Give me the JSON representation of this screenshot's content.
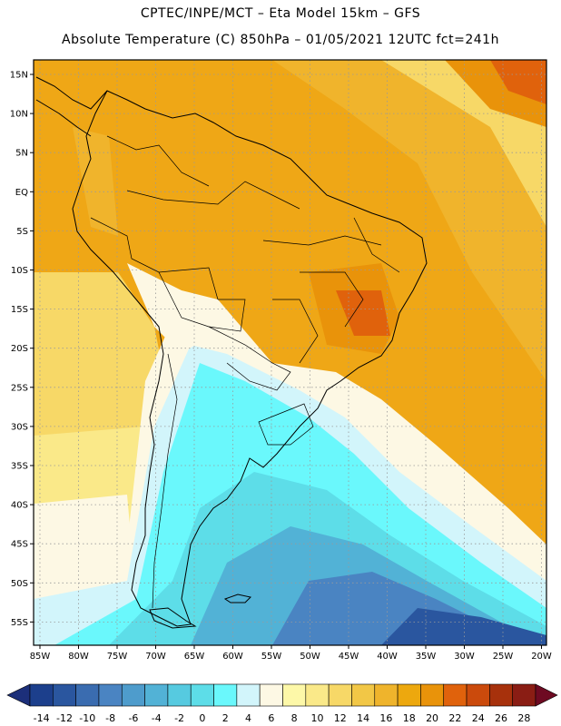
{
  "title_line1": "CPTEC/INPE/MCT –  Eta Model 15km – GFS",
  "title_line2": "Absolute Temperature (C) 850hPa – 01/05/2021 12UTC fct=241h",
  "lat_labels": [
    "15N",
    "10N",
    "5N",
    "EQ",
    "5S",
    "10S",
    "15S",
    "20S",
    "25S",
    "30S",
    "35S",
    "40S",
    "45S",
    "50S",
    "55S"
  ],
  "lon_labels": [
    "85W",
    "80W",
    "75W",
    "70W",
    "65W",
    "60W",
    "55W",
    "50W",
    "45W",
    "40W",
    "35W",
    "30W",
    "25W",
    "20W"
  ],
  "colorbar": {
    "labels": [
      "-14",
      "-12",
      "-10",
      "-8",
      "-6",
      "-4",
      "-2",
      "0",
      "2",
      "4",
      "6",
      "8",
      "10",
      "12",
      "14",
      "16",
      "18",
      "20",
      "22",
      "24",
      "26",
      "28"
    ],
    "colors": [
      "#1c3f8c",
      "#2a569f",
      "#3a6cb0",
      "#4a84c2",
      "#4e9ccc",
      "#52b2d6",
      "#56cae0",
      "#5ddde8",
      "#6af8fc",
      "#d2f5fb",
      "#fdf8e4",
      "#fdf8a8",
      "#fae989",
      "#f7d867",
      "#f2c746",
      "#efb42c",
      "#eda80e",
      "#e9930a",
      "#e0620c",
      "#cb4a0c",
      "#a7310c",
      "#8a1d14"
    ],
    "left_arrow_color": "#1c2f7a",
    "right_arrow_color": "#6e0a22"
  },
  "map_colors": {
    "warm_orange": "#efa716",
    "orange_mid": "#f0b42c",
    "yellow": "#f7d867",
    "pale_yellow": "#fae989",
    "cream": "#fdf8e4",
    "pale_blue": "#d2f5fb",
    "cyan": "#6af8fc",
    "light_cyan": "#5ddde8",
    "blue_mid": "#4a84c2",
    "blue_dark": "#2a569f",
    "dark_red_orange": "#e0620c"
  }
}
